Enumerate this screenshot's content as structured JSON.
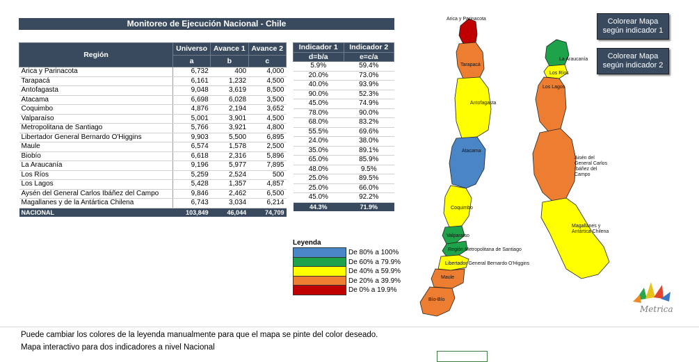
{
  "title": "Monitoreo de Ejecución Nacional - Chile",
  "headers": {
    "region": "Región",
    "universo": "Universo",
    "universo_sub": "a",
    "avance1": "Avance 1",
    "avance1_sub": "b",
    "avance2": "Avance 2",
    "avance2_sub": "c",
    "ind1": "Indicador 1",
    "ind1_sub": "d=b/a",
    "ind2": "Indicador 2",
    "ind2_sub": "e=c/a"
  },
  "rows": [
    {
      "region": "Arica y Parinacota",
      "a": "6,732",
      "b": "400",
      "c": "4,000",
      "d": "5.9%",
      "e": "59.4%"
    },
    {
      "region": "Tarapacá",
      "a": "6,161",
      "b": "1,232",
      "c": "4,500",
      "d": "20.0%",
      "e": "73.0%"
    },
    {
      "region": "Antofagasta",
      "a": "9,048",
      "b": "3,619",
      "c": "8,500",
      "d": "40.0%",
      "e": "93.9%"
    },
    {
      "region": "Atacama",
      "a": "6,698",
      "b": "6,028",
      "c": "3,500",
      "d": "90.0%",
      "e": "52.3%"
    },
    {
      "region": "Coquimbo",
      "a": "4,876",
      "b": "2,194",
      "c": "3,652",
      "d": "45.0%",
      "e": "74.9%"
    },
    {
      "region": "Valparaíso",
      "a": "5,001",
      "b": "3,901",
      "c": "4,500",
      "d": "78.0%",
      "e": "90.0%"
    },
    {
      "region": "Metropolitana de Santiago",
      "a": "5,766",
      "b": "3,921",
      "c": "4,800",
      "d": "68.0%",
      "e": "83.2%"
    },
    {
      "region": "Libertador General Bernardo O'Higgins",
      "a": "9,903",
      "b": "5,500",
      "c": "6,895",
      "d": "55.5%",
      "e": "69.6%"
    },
    {
      "region": "Maule",
      "a": "6,574",
      "b": "1,578",
      "c": "2,500",
      "d": "24.0%",
      "e": "38.0%"
    },
    {
      "region": "Biobío",
      "a": "6,618",
      "b": "2,316",
      "c": "5,896",
      "d": "35.0%",
      "e": "89.1%"
    },
    {
      "region": "La Araucanía",
      "a": "9,196",
      "b": "5,977",
      "c": "7,895",
      "d": "65.0%",
      "e": "85.9%"
    },
    {
      "region": "Los Ríos",
      "a": "5,259",
      "b": "2,524",
      "c": "500",
      "d": "48.0%",
      "e": "9.5%"
    },
    {
      "region": "Los Lagos",
      "a": "5,428",
      "b": "1,357",
      "c": "4,857",
      "d": "25.0%",
      "e": "89.5%"
    },
    {
      "region": "Aysén del General Carlos Ibáñez del Campo",
      "a": "9,846",
      "b": "2,462",
      "c": "6,500",
      "d": "25.0%",
      "e": "66.0%"
    },
    {
      "region": "Magallanes y de la Antártica Chilena",
      "a": "6,743",
      "b": "3,034",
      "c": "6,214",
      "d": "45.0%",
      "e": "92.2%"
    }
  ],
  "total": {
    "region": "NACIONAL",
    "a": "103,849",
    "b": "46,044",
    "c": "74,709",
    "d": "44.3%",
    "e": "71.9%"
  },
  "legend": {
    "title": "Leyenda",
    "items": [
      {
        "label": "De 80% a 100%",
        "color": "#4a86c6"
      },
      {
        "label": "De 60% a 79.9%",
        "color": "#1ea34a"
      },
      {
        "label": "De 40% a 59.9%",
        "color": "#ffff00"
      },
      {
        "label": "De 20% a 39.9%",
        "color": "#ed7d31"
      },
      {
        "label": "De   0% a 19.9%",
        "color": "#c00000"
      }
    ]
  },
  "buttons": {
    "btn1": "Colorear Mapa según indicador 1",
    "btn2": "Colorear Mapa según indicador 2"
  },
  "map_labels": {
    "arica": "Arica y Parinacota",
    "tarapaca": "Tarapacá",
    "antofagasta": "Antofagasta",
    "atacama": "Atacama",
    "coquimbo": "Coquimbo",
    "valparaiso": "Valparaíso",
    "metropolitana": "Región Metropolitana de Santiago",
    "ohiggins": "Libertador General Bernardo O'Higgins",
    "maule": "Maule",
    "biobio": "Bío-Bío",
    "araucania": "La Araucanía",
    "losrios": "Los Ríos",
    "loslagos": "Los Lagos",
    "aysen": "Aisén del General Carlos Ibáñez del Campo",
    "magallanes": "Magallanes y Antártica Chilena"
  },
  "map_colors": {
    "arica": "#c00000",
    "tarapaca": "#ed7d31",
    "antofagasta": "#ffff00",
    "atacama": "#4a86c6",
    "coquimbo": "#ffff00",
    "valparaiso": "#1ea34a",
    "metropolitana": "#1ea34a",
    "ohiggins": "#ffff00",
    "maule": "#ed7d31",
    "biobio": "#ed7d31",
    "araucania": "#1ea34a",
    "losrios": "#ffff00",
    "loslagos": "#ed7d31",
    "aysen": "#ed7d31",
    "magallanes": "#ffff00"
  },
  "logo_text": "Metrica",
  "notes": [
    "Puede cambiar los colores de la leyenda manualmente para que el mapa se pinte del color deseado.",
    "Mapa interactivo para dos indicadores a nivel Nacional"
  ]
}
